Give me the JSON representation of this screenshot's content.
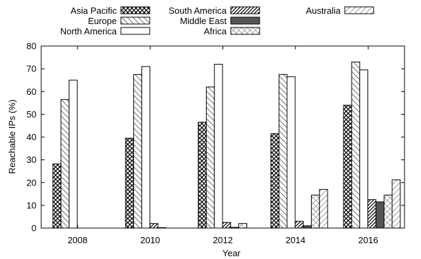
{
  "chart_data": {
    "type": "bar",
    "xlabel": "Year",
    "ylabel": "Reachable IPs (%)",
    "ylim": [
      0,
      80
    ],
    "yticks": [
      0,
      10,
      20,
      30,
      40,
      50,
      60,
      70,
      80
    ],
    "categories": [
      "2008",
      "2010",
      "2012",
      "2014",
      "2016"
    ],
    "legend_position": "top",
    "series": [
      {
        "name": "Asia Pacific",
        "pattern": "crosshatch",
        "values": [
          28.2,
          39.5,
          46.5,
          41.5,
          54.0
        ]
      },
      {
        "name": "Europe",
        "pattern": "diag-back",
        "values": [
          56.5,
          67.5,
          62.0,
          67.5,
          73.0
        ]
      },
      {
        "name": "North America",
        "pattern": "blank",
        "values": [
          65.0,
          71.0,
          72.0,
          66.5,
          69.5
        ]
      },
      {
        "name": "South America",
        "pattern": "diag-fwd",
        "values": [
          0,
          2.0,
          2.5,
          3.0,
          12.5
        ]
      },
      {
        "name": "Middle East",
        "pattern": "solid-dark",
        "values": [
          0,
          0.2,
          0.3,
          1.0,
          11.5
        ]
      },
      {
        "name": "Africa",
        "pattern": "light-cross",
        "values": [
          0,
          0,
          2.0,
          14.5,
          14.5
        ]
      },
      {
        "name": "Australia",
        "pattern": "diag-light",
        "values": [
          0,
          0,
          0,
          17.0,
          21.2
        ]
      }
    ]
  }
}
